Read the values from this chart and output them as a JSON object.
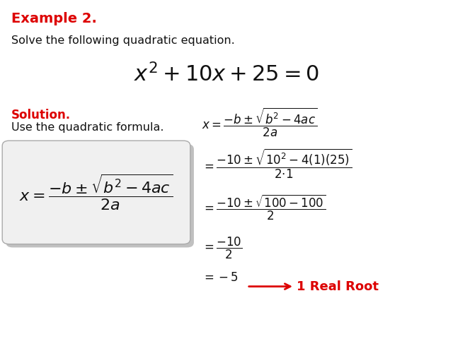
{
  "bg_color": "#ffffff",
  "red_color": "#dd0000",
  "black_color": "#111111",
  "example_label": "Example 2.",
  "intro_text": "Solve the following quadratic equation.",
  "solution_label": "Solution.",
  "use_formula_text": "Use the quadratic formula.",
  "annotation": "1 Real Root",
  "fig_width": 6.4,
  "fig_height": 4.8,
  "dpi": 100
}
